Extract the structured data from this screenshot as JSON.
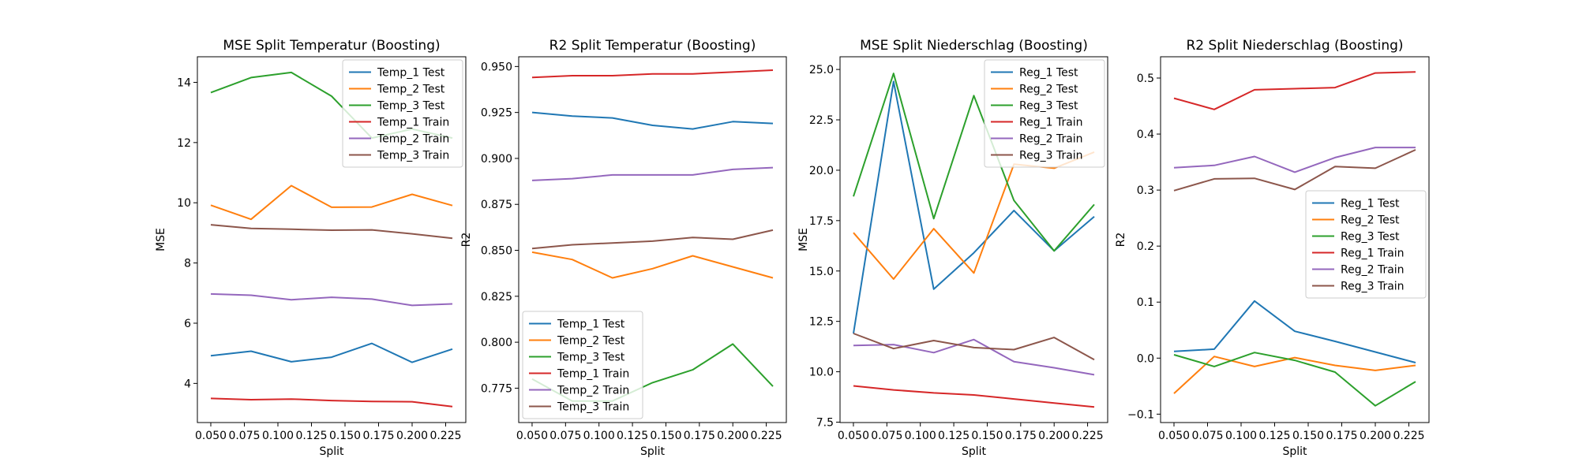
{
  "chart_data": [
    {
      "type": "line",
      "title": "MSE Split Temperatur (Boosting)",
      "xlabel": "Split",
      "ylabel": "MSE",
      "x": [
        0.05,
        0.08,
        0.11,
        0.14,
        0.17,
        0.2,
        0.23
      ],
      "xlim": [
        0.04,
        0.24
      ],
      "ylim": [
        2.7,
        14.85
      ],
      "xticks": [
        0.05,
        0.075,
        0.1,
        0.125,
        0.15,
        0.175,
        0.2,
        0.225
      ],
      "xtick_labels": [
        "0.050",
        "0.075",
        "0.100",
        "0.125",
        "0.150",
        "0.175",
        "0.200",
        "0.225"
      ],
      "yticks": [
        4,
        6,
        8,
        10,
        12,
        14
      ],
      "ytick_labels": [
        "4",
        "6",
        "8",
        "10",
        "12",
        "14"
      ],
      "legend_position": "upper-right",
      "series": [
        {
          "name": "Temp_1 Test",
          "color": "#1f77b4",
          "values": [
            4.92,
            5.07,
            4.72,
            4.87,
            5.33,
            4.7,
            5.14
          ]
        },
        {
          "name": "Temp_2 Test",
          "color": "#ff7f0e",
          "values": [
            9.92,
            9.45,
            10.57,
            9.85,
            9.86,
            10.28,
            9.91
          ]
        },
        {
          "name": "Temp_3 Test",
          "color": "#2ca02c",
          "values": [
            13.66,
            14.16,
            14.33,
            13.54,
            12.15,
            12.45,
            12.15
          ]
        },
        {
          "name": "Temp_1 Train",
          "color": "#d62728",
          "values": [
            3.5,
            3.46,
            3.48,
            3.43,
            3.4,
            3.39,
            3.23
          ]
        },
        {
          "name": "Temp_2 Train",
          "color": "#9467bd",
          "values": [
            6.97,
            6.93,
            6.78,
            6.86,
            6.8,
            6.59,
            6.64
          ]
        },
        {
          "name": "Temp_3 Train",
          "color": "#8c564b",
          "values": [
            9.27,
            9.15,
            9.12,
            9.09,
            9.1,
            8.97,
            8.82
          ]
        }
      ]
    },
    {
      "type": "line",
      "title": "R2 Split Temperatur (Boosting)",
      "xlabel": "Split",
      "ylabel": "R2",
      "x": [
        0.05,
        0.08,
        0.11,
        0.14,
        0.17,
        0.2,
        0.23
      ],
      "xlim": [
        0.04,
        0.24
      ],
      "ylim": [
        0.7563,
        0.9553
      ],
      "xticks": [
        0.05,
        0.075,
        0.1,
        0.125,
        0.15,
        0.175,
        0.2,
        0.225
      ],
      "xtick_labels": [
        "0.050",
        "0.075",
        "0.100",
        "0.125",
        "0.150",
        "0.175",
        "0.200",
        "0.225"
      ],
      "yticks": [
        0.775,
        0.8,
        0.825,
        0.85,
        0.875,
        0.9,
        0.925,
        0.95
      ],
      "ytick_labels": [
        "0.775",
        "0.800",
        "0.825",
        "0.850",
        "0.875",
        "0.900",
        "0.925",
        "0.950"
      ],
      "legend_position": "lower-left",
      "series": [
        {
          "name": "Temp_1 Test",
          "color": "#1f77b4",
          "values": [
            0.925,
            0.923,
            0.922,
            0.918,
            0.916,
            0.92,
            0.919
          ]
        },
        {
          "name": "Temp_2 Test",
          "color": "#ff7f0e",
          "values": [
            0.849,
            0.845,
            0.835,
            0.84,
            0.847,
            0.841,
            0.835
          ]
        },
        {
          "name": "Temp_3 Test",
          "color": "#2ca02c",
          "values": [
            0.78,
            0.768,
            0.768,
            0.778,
            0.785,
            0.799,
            0.776
          ]
        },
        {
          "name": "Temp_1 Train",
          "color": "#d62728",
          "values": [
            0.944,
            0.945,
            0.945,
            0.946,
            0.946,
            0.947,
            0.948
          ]
        },
        {
          "name": "Temp_2 Train",
          "color": "#9467bd",
          "values": [
            0.888,
            0.889,
            0.891,
            0.891,
            0.891,
            0.894,
            0.895
          ]
        },
        {
          "name": "Temp_3 Train",
          "color": "#8c564b",
          "values": [
            0.851,
            0.853,
            0.854,
            0.855,
            0.857,
            0.856,
            0.861
          ]
        }
      ]
    },
    {
      "type": "line",
      "title": "MSE Split Niederschlag (Boosting)",
      "xlabel": "Split",
      "ylabel": "MSE",
      "x": [
        0.05,
        0.08,
        0.11,
        0.14,
        0.17,
        0.2,
        0.23
      ],
      "xlim": [
        0.04,
        0.24
      ],
      "ylim": [
        7.48,
        25.63
      ],
      "xticks": [
        0.05,
        0.075,
        0.1,
        0.125,
        0.15,
        0.175,
        0.2,
        0.225
      ],
      "xtick_labels": [
        "0.050",
        "0.075",
        "0.100",
        "0.125",
        "0.150",
        "0.175",
        "0.200",
        "0.225"
      ],
      "yticks": [
        7.5,
        10,
        12.5,
        15,
        17.5,
        20,
        22.5,
        25
      ],
      "ytick_labels": [
        "7.5",
        "10.0",
        "12.5",
        "15.0",
        "17.5",
        "20.0",
        "22.5",
        "25.0"
      ],
      "legend_position": "upper-right",
      "series": [
        {
          "name": "Reg_1 Test",
          "color": "#1f77b4",
          "values": [
            11.9,
            24.4,
            14.1,
            15.9,
            18.0,
            16.0,
            17.7
          ]
        },
        {
          "name": "Reg_2 Test",
          "color": "#ff7f0e",
          "values": [
            16.9,
            14.6,
            17.1,
            14.9,
            20.3,
            20.1,
            20.9
          ]
        },
        {
          "name": "Reg_3 Test",
          "color": "#2ca02c",
          "values": [
            18.7,
            24.8,
            17.6,
            23.7,
            18.5,
            16.0,
            18.3
          ]
        },
        {
          "name": "Reg_1 Train",
          "color": "#d62728",
          "values": [
            9.3,
            9.1,
            8.95,
            8.85,
            8.65,
            8.45,
            8.25
          ]
        },
        {
          "name": "Reg_2 Train",
          "color": "#9467bd",
          "values": [
            11.3,
            11.35,
            10.95,
            11.6,
            10.5,
            10.2,
            9.85
          ]
        },
        {
          "name": "Reg_3 Train",
          "color": "#8c564b",
          "values": [
            11.9,
            11.15,
            11.55,
            11.2,
            11.1,
            11.7,
            10.6
          ]
        }
      ]
    },
    {
      "type": "line",
      "title": "R2 Split Niederschlag (Boosting)",
      "xlabel": "Split",
      "ylabel": "R2",
      "x": [
        0.05,
        0.08,
        0.11,
        0.14,
        0.17,
        0.2,
        0.23
      ],
      "xlim": [
        0.04,
        0.24
      ],
      "ylim": [
        -0.115,
        0.538
      ],
      "xticks": [
        0.05,
        0.075,
        0.1,
        0.125,
        0.15,
        0.175,
        0.2,
        0.225
      ],
      "xtick_labels": [
        "0.050",
        "0.075",
        "0.100",
        "0.125",
        "0.150",
        "0.175",
        "0.200",
        "0.225"
      ],
      "yticks": [
        -0.1,
        0.0,
        0.1,
        0.2,
        0.3,
        0.4,
        0.5
      ],
      "ytick_labels": [
        "−0.1",
        "0.0",
        "0.1",
        "0.2",
        "0.3",
        "0.4",
        "0.5"
      ],
      "legend_position": "center-right",
      "series": [
        {
          "name": "Reg_1 Test",
          "color": "#1f77b4",
          "values": [
            0.012,
            0.016,
            0.102,
            0.048,
            0.03,
            0.011,
            -0.008
          ]
        },
        {
          "name": "Reg_2 Test",
          "color": "#ff7f0e",
          "values": [
            -0.063,
            0.003,
            -0.015,
            0.001,
            -0.013,
            -0.022,
            -0.013
          ]
        },
        {
          "name": "Reg_3 Test",
          "color": "#2ca02c",
          "values": [
            0.006,
            -0.015,
            0.01,
            -0.004,
            -0.025,
            -0.085,
            -0.042
          ]
        },
        {
          "name": "Reg_1 Train",
          "color": "#d62728",
          "values": [
            0.464,
            0.444,
            0.479,
            0.481,
            0.483,
            0.509,
            0.511
          ]
        },
        {
          "name": "Reg_2 Train",
          "color": "#9467bd",
          "values": [
            0.34,
            0.344,
            0.36,
            0.332,
            0.358,
            0.376,
            0.376
          ]
        },
        {
          "name": "Reg_3 Train",
          "color": "#8c564b",
          "values": [
            0.299,
            0.32,
            0.321,
            0.301,
            0.342,
            0.339,
            0.372
          ]
        }
      ]
    }
  ]
}
